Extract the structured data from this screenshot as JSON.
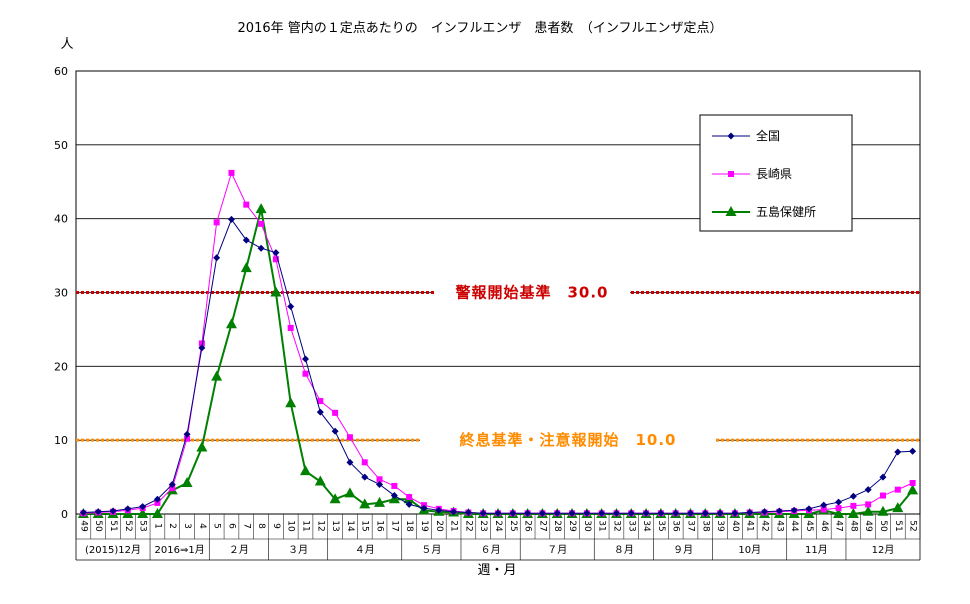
{
  "chart_data": {
    "type": "line",
    "title": "2016年 管内の１定点あたりの　インフルエンザ　患者数　（インフルエンザ定点）",
    "ylabel": "人",
    "xlabel": "週・月",
    "ylim": [
      0,
      60
    ],
    "yticks": [
      "0",
      "10",
      "20",
      "30",
      "40",
      "50",
      "60"
    ],
    "grid": true,
    "legend_position": "top-right",
    "x": [
      "49",
      "50",
      "51",
      "52",
      "53",
      "1",
      "2",
      "3",
      "4",
      "5",
      "6",
      "7",
      "8",
      "9",
      "10",
      "11",
      "12",
      "13",
      "14",
      "15",
      "16",
      "17",
      "18",
      "19",
      "20",
      "21",
      "22",
      "23",
      "24",
      "25",
      "26",
      "27",
      "28",
      "29",
      "30",
      "31",
      "32",
      "33",
      "34",
      "35",
      "36",
      "37",
      "38",
      "39",
      "40",
      "41",
      "42",
      "43",
      "44",
      "45",
      "46",
      "47",
      "48",
      "49",
      "50",
      "51",
      "52"
    ],
    "months": [
      {
        "label": "(2015)12月",
        "start": 0,
        "end": 5
      },
      {
        "label": "2016⇒1月",
        "start": 5,
        "end": 9
      },
      {
        "label": "２月",
        "start": 9,
        "end": 13
      },
      {
        "label": "３月",
        "start": 13,
        "end": 17
      },
      {
        "label": "４月",
        "start": 17,
        "end": 22
      },
      {
        "label": "５月",
        "start": 22,
        "end": 26
      },
      {
        "label": "６月",
        "start": 26,
        "end": 30
      },
      {
        "label": "７月",
        "start": 30,
        "end": 35
      },
      {
        "label": "８月",
        "start": 35,
        "end": 39
      },
      {
        "label": "９月",
        "start": 39,
        "end": 43
      },
      {
        "label": "10月",
        "start": 43,
        "end": 48
      },
      {
        "label": "11月",
        "start": 48,
        "end": 52
      },
      {
        "label": "12月",
        "start": 52,
        "end": 57
      }
    ],
    "series": [
      {
        "name": "全国",
        "color": "#000080",
        "marker": "diamond",
        "values": [
          0.2,
          0.3,
          0.4,
          0.7,
          1.0,
          2.0,
          4.0,
          10.8,
          22.5,
          34.7,
          39.9,
          37.1,
          36.0,
          35.4,
          28.1,
          21.0,
          13.8,
          11.2,
          7.0,
          5.0,
          4.0,
          2.5,
          1.3,
          0.8,
          0.5,
          0.3,
          0.2,
          0.1,
          0.1,
          0.1,
          0.1,
          0.1,
          0.1,
          0.1,
          0.1,
          0.1,
          0.1,
          0.1,
          0.1,
          0.1,
          0.1,
          0.1,
          0.1,
          0.1,
          0.1,
          0.2,
          0.3,
          0.4,
          0.5,
          0.7,
          1.2,
          1.6,
          2.4,
          3.3,
          5.0,
          8.4,
          8.5
        ]
      },
      {
        "name": "長崎県",
        "color": "#FF00FF",
        "marker": "square",
        "values": [
          0.1,
          0.2,
          0.3,
          0.5,
          0.8,
          1.5,
          3.5,
          10.2,
          23.1,
          39.5,
          46.2,
          41.9,
          39.3,
          34.5,
          25.2,
          19.0,
          15.3,
          13.7,
          10.4,
          7.0,
          4.7,
          3.8,
          2.3,
          1.2,
          0.7,
          0.4,
          0.2,
          0.1,
          0.1,
          0.1,
          0.1,
          0.1,
          0.1,
          0.1,
          0.1,
          0.1,
          0.1,
          0.1,
          0.1,
          0.1,
          0.1,
          0.1,
          0.1,
          0.1,
          0.1,
          0.2,
          0.2,
          0.3,
          0.4,
          0.5,
          0.6,
          0.8,
          1.1,
          1.3,
          2.5,
          3.3,
          4.2
        ]
      },
      {
        "name": "五島保健所",
        "color": "#008000",
        "marker": "triangle",
        "values": [
          0.0,
          0.0,
          0.0,
          0.0,
          0.0,
          0.0,
          3.2,
          4.2,
          9.0,
          18.6,
          25.7,
          33.3,
          41.3,
          30.0,
          15.0,
          5.8,
          4.4,
          2.0,
          2.8,
          1.3,
          1.5,
          2.0,
          2.0,
          0.5,
          0.3,
          0.2,
          0.0,
          0.0,
          0.0,
          0.0,
          0.0,
          0.0,
          0.0,
          0.0,
          0.0,
          0.0,
          0.0,
          0.0,
          0.0,
          0.0,
          0.0,
          0.0,
          0.0,
          0.0,
          0.0,
          0.0,
          0.0,
          0.0,
          0.0,
          0.0,
          0.5,
          0.0,
          0.0,
          0.3,
          0.3,
          0.8,
          3.2
        ]
      }
    ],
    "reference_lines": [
      {
        "label": "警報開始基準　30.0",
        "value": 30.0,
        "color": "#CC0000"
      },
      {
        "label": "終息基準・注意報開始　10.0",
        "value": 10.0,
        "color": "#FF8C00"
      }
    ]
  }
}
